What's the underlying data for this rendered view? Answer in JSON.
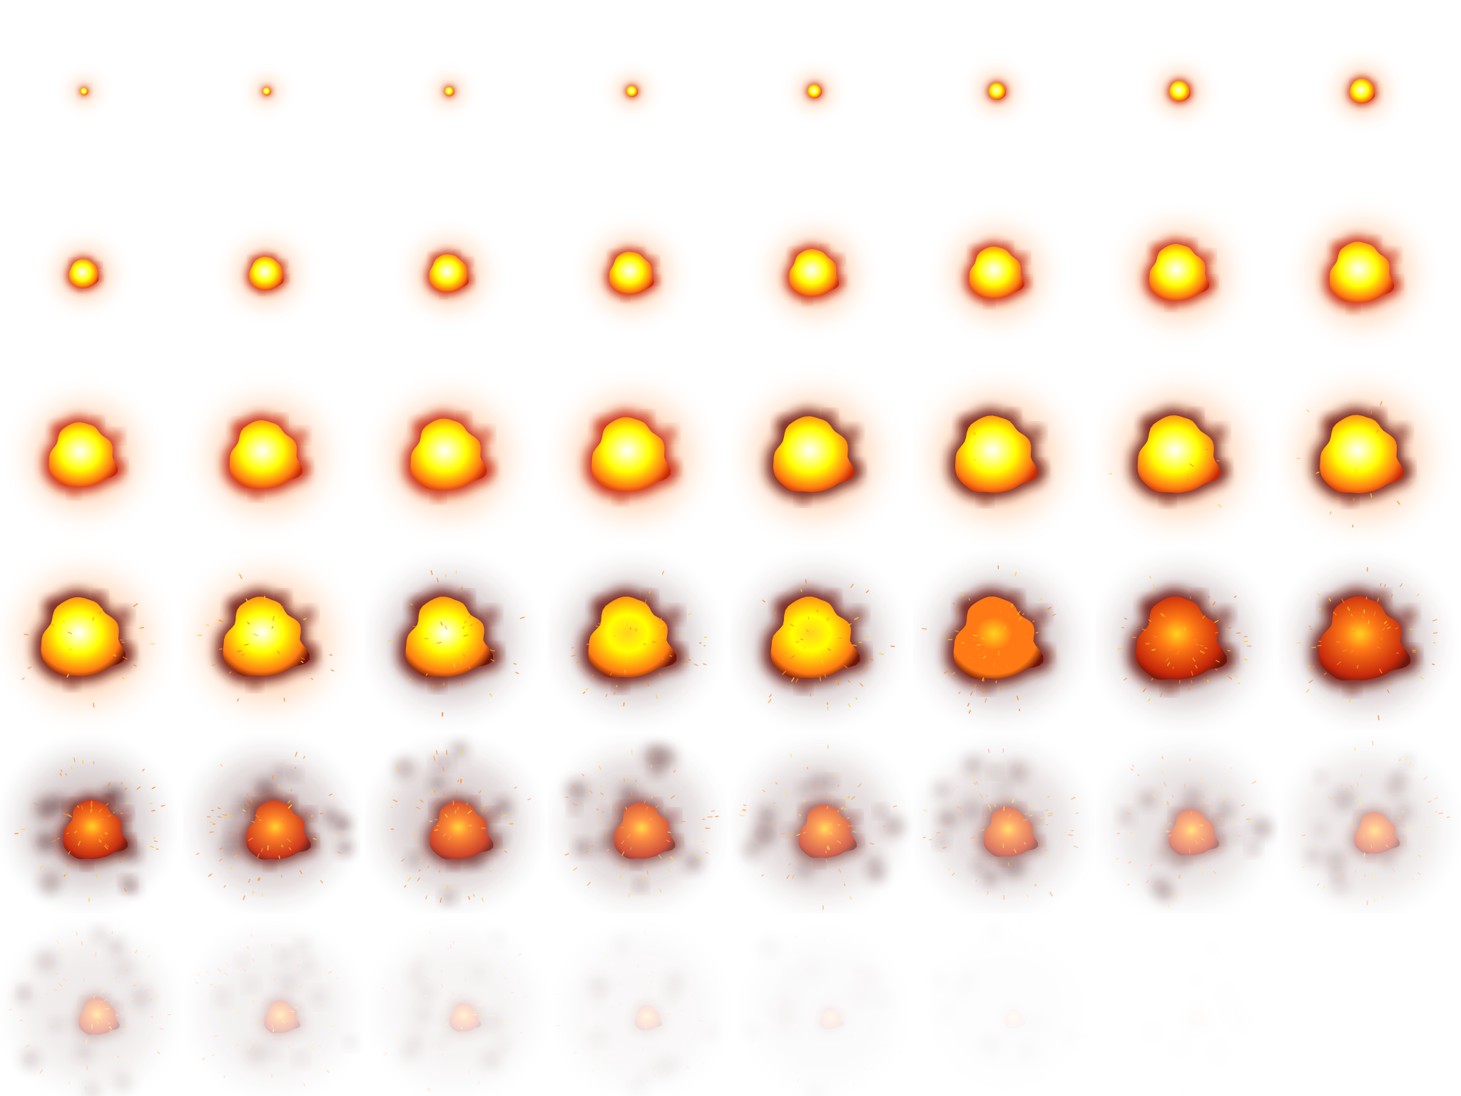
{
  "sprite_sheet": {
    "columns": 8,
    "rows": 6,
    "frame_count": 48,
    "background": "#ffffff",
    "colors": {
      "core_white": "#ffffff",
      "core_yellow": "#ffff00",
      "fire_yellow": "#ffd21e",
      "fire_orange": "#ff7a14",
      "rim_red": "#c8280a",
      "ember_dark": "#6e140a",
      "smoke_brown": "#4b1414",
      "spark_orange": "#ff8c28"
    },
    "phases": [
      "ignition",
      "fireball",
      "expansion",
      "burst",
      "embers",
      "dissipation"
    ]
  }
}
